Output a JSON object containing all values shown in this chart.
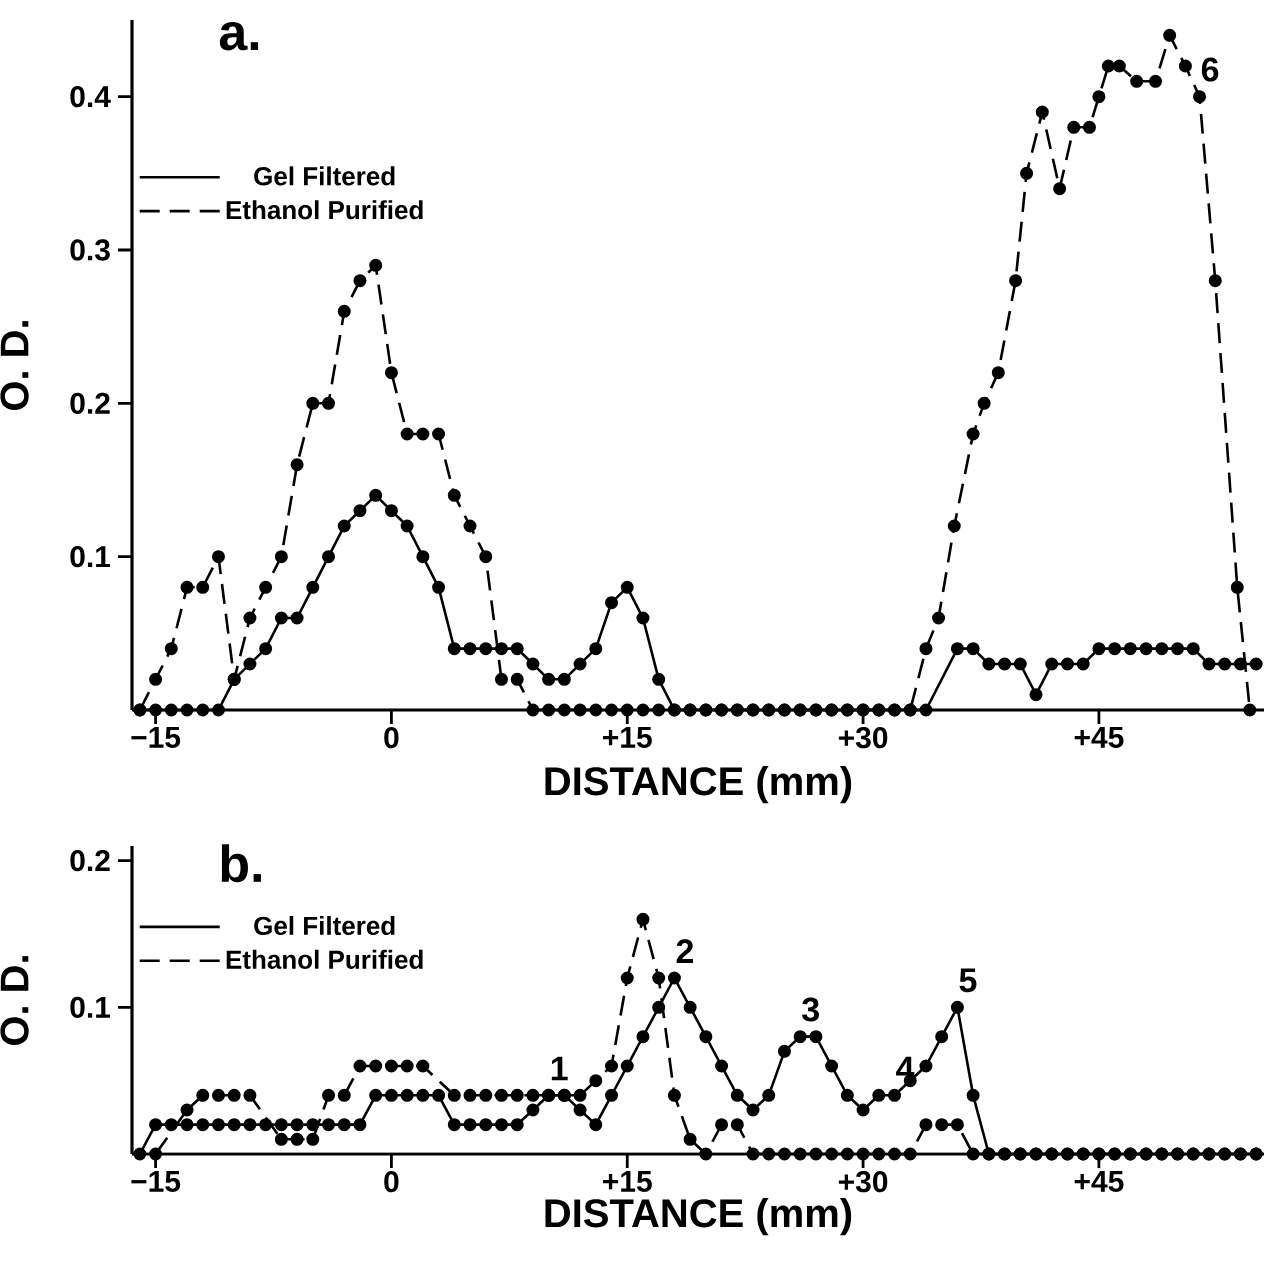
{
  "chart_data": [
    {
      "type": "line",
      "title": "a.",
      "xlabel": "DISTANCE (mm)",
      "ylabel": "O. D.",
      "xlim": [
        -16.5,
        55.5
      ],
      "ylim": [
        0,
        0.45
      ],
      "xticks": [
        {
          "value": -15,
          "label": "−15"
        },
        0,
        {
          "value": 15,
          "label": "+15"
        },
        {
          "value": 30,
          "label": "+30"
        },
        {
          "value": 45,
          "label": "+45"
        }
      ],
      "yticks": [
        0.1,
        0.2,
        0.3,
        0.4
      ],
      "legend": "top left",
      "marker": "circle",
      "series": [
        {
          "name": "Gel Filtered",
          "color": "#000000",
          "line_style": "solid",
          "x": [
            -16,
            -15,
            -14,
            -13,
            -12,
            -11,
            -10,
            -9,
            -8,
            -7,
            -6,
            -5,
            -4,
            -3,
            -2,
            -1,
            0,
            1,
            2,
            3,
            4,
            5,
            6,
            7,
            8,
            9,
            10,
            11,
            12,
            13,
            14,
            15,
            16,
            17,
            18,
            19,
            20,
            21,
            22,
            23,
            24,
            25,
            26,
            27,
            28,
            29,
            30,
            31,
            32,
            33,
            34,
            36,
            37,
            38,
            39,
            40,
            41,
            42,
            43,
            44,
            45,
            46,
            47,
            48,
            49,
            50,
            51,
            52,
            53,
            54,
            55
          ],
          "values": [
            0,
            0,
            0,
            0,
            0,
            0,
            0.02,
            0.03,
            0.04,
            0.06,
            0.06,
            0.08,
            0.1,
            0.12,
            0.13,
            0.14,
            0.13,
            0.12,
            0.1,
            0.08,
            0.04,
            0.04,
            0.04,
            0.04,
            0.04,
            0.03,
            0.02,
            0.02,
            0.03,
            0.04,
            0.07,
            0.08,
            0.06,
            0.02,
            0,
            0,
            0,
            0,
            0,
            0,
            0,
            0,
            0,
            0,
            0,
            0,
            0,
            0,
            0,
            0,
            0,
            0.04,
            0.04,
            0.03,
            0.03,
            0.03,
            0.01,
            0.03,
            0.03,
            0.03,
            0.04,
            0.04,
            0.04,
            0.04,
            0.04,
            0.04,
            0.04,
            0.03,
            0.03,
            0.03,
            0.03
          ]
        },
        {
          "name": "Ethanol Purified",
          "color": "#000000",
          "line_style": "dashed",
          "x": [
            -16,
            -15,
            -14,
            -13,
            -12,
            -11,
            -10,
            -9,
            -8,
            -7,
            -6,
            -5,
            -4,
            -3,
            -2,
            -1,
            0,
            1,
            2,
            3,
            4,
            5,
            6,
            7,
            8,
            9,
            10,
            11,
            12,
            13,
            14,
            15,
            16,
            17,
            18,
            19,
            20,
            21,
            22,
            23,
            24,
            25,
            26,
            27,
            28,
            29,
            30,
            31,
            32,
            33,
            34.0,
            34.8,
            35.8,
            37.0,
            37.7,
            38.6,
            39.7,
            40.4,
            41.4,
            42.5,
            43.4,
            44.4,
            45.0,
            45.6,
            46.3,
            47.4,
            48.6,
            49.5,
            50.5,
            51.4,
            52.4,
            53.8,
            54.6
          ],
          "values": [
            0,
            0.02,
            0.04,
            0.08,
            0.08,
            0.1,
            0.02,
            0.06,
            0.08,
            0.1,
            0.16,
            0.2,
            0.2,
            0.26,
            0.28,
            0.29,
            0.22,
            0.18,
            0.18,
            0.18,
            0.14,
            0.12,
            0.1,
            0.02,
            0.02,
            0,
            0,
            0,
            0,
            0,
            0,
            0,
            0,
            0,
            0,
            0,
            0,
            0,
            0,
            0,
            0,
            0,
            0,
            0,
            0,
            0,
            0,
            0,
            0,
            0,
            0.04,
            0.06,
            0.12,
            0.18,
            0.2,
            0.22,
            0.28,
            0.35,
            0.39,
            0.34,
            0.38,
            0.38,
            0.4,
            0.42,
            0.42,
            0.41,
            0.41,
            0.44,
            0.42,
            0.4,
            0.28,
            0.08,
            0
          ]
        }
      ],
      "annotations": [
        {
          "text": "6",
          "x": 51.4,
          "y": 0.4
        }
      ]
    },
    {
      "type": "line",
      "title": "b.",
      "xlabel": "DISTANCE (mm)",
      "ylabel": "O. D.",
      "xlim": [
        -16.5,
        55.5
      ],
      "ylim": [
        0,
        0.21
      ],
      "xticks": [
        {
          "value": -15,
          "label": "−15"
        },
        0,
        {
          "value": 15,
          "label": "+15"
        },
        {
          "value": 30,
          "label": "+30"
        },
        {
          "value": 45,
          "label": "+45"
        }
      ],
      "yticks": [
        0.1,
        0.2
      ],
      "legend": "top left",
      "marker": "circle",
      "series": [
        {
          "name": "Gel Filtered",
          "color": "#000000",
          "line_style": "solid",
          "x": [
            -16,
            -15,
            -14,
            -13,
            -12,
            -11,
            -10,
            -9,
            -8,
            -7,
            -6,
            -5,
            -4,
            -3,
            -2,
            -1,
            0,
            1,
            2,
            3,
            4,
            5,
            6,
            7,
            8,
            9,
            10,
            11,
            12,
            13,
            14,
            15,
            16,
            17,
            18,
            19,
            20,
            21,
            22,
            23,
            24,
            25,
            26,
            27,
            28,
            29,
            30,
            31,
            32,
            33,
            34,
            35,
            36,
            37,
            38,
            39,
            40,
            41,
            42,
            43,
            44,
            45,
            46,
            47,
            48,
            49,
            50,
            51,
            52,
            53,
            54,
            55
          ],
          "values": [
            0,
            0.02,
            0.02,
            0.02,
            0.02,
            0.02,
            0.02,
            0.02,
            0.02,
            0.02,
            0.02,
            0.02,
            0.02,
            0.02,
            0.02,
            0.04,
            0.04,
            0.04,
            0.04,
            0.04,
            0.02,
            0.02,
            0.02,
            0.02,
            0.02,
            0.03,
            0.04,
            0.04,
            0.03,
            0.02,
            0.04,
            0.06,
            0.08,
            0.1,
            0.12,
            0.1,
            0.08,
            0.06,
            0.04,
            0.03,
            0.04,
            0.07,
            0.08,
            0.08,
            0.06,
            0.04,
            0.03,
            0.04,
            0.04,
            0.05,
            0.06,
            0.08,
            0.1,
            0.04,
            0,
            0,
            0,
            0,
            0,
            0,
            0,
            0,
            0,
            0,
            0,
            0,
            0,
            0,
            0,
            0,
            0,
            0
          ]
        },
        {
          "name": "Ethanol Purified",
          "color": "#000000",
          "line_style": "dashed",
          "x": [
            -15,
            -13,
            -12,
            -11,
            -10,
            -9,
            -7,
            -6,
            -5,
            -4,
            -3,
            -2,
            -1,
            0,
            1,
            2,
            4,
            5,
            6,
            7,
            8,
            9,
            10,
            11,
            12,
            13,
            14,
            15,
            16,
            17,
            18,
            19,
            20,
            21,
            22,
            23,
            24,
            25,
            26,
            27,
            28,
            29,
            30,
            31,
            32,
            33,
            34,
            35,
            36,
            37,
            38,
            39,
            40,
            41,
            42,
            43,
            44,
            45,
            46,
            47,
            48,
            49,
            50,
            51,
            52,
            53,
            54,
            55
          ],
          "values": [
            0,
            0.03,
            0.04,
            0.04,
            0.04,
            0.04,
            0.01,
            0.01,
            0.01,
            0.04,
            0.04,
            0.06,
            0.06,
            0.06,
            0.06,
            0.06,
            0.04,
            0.04,
            0.04,
            0.04,
            0.04,
            0.04,
            0.04,
            0.04,
            0.04,
            0.05,
            0.06,
            0.12,
            0.16,
            0.12,
            0.04,
            0.01,
            0,
            0.02,
            0.02,
            0,
            0,
            0,
            0,
            0,
            0,
            0,
            0,
            0,
            0,
            0,
            0.02,
            0.02,
            0.02,
            0,
            0,
            0,
            0,
            0,
            0,
            0,
            0,
            0,
            0,
            0,
            0,
            0,
            0,
            0,
            0,
            0,
            0,
            0
          ]
        }
      ],
      "annotations": [
        {
          "text": "1",
          "x": 10,
          "y": 0.04
        },
        {
          "text": "2",
          "x": 18,
          "y": 0.12
        },
        {
          "text": "3",
          "x": 26,
          "y": 0.08
        },
        {
          "text": "4",
          "x": 32,
          "y": 0.04
        },
        {
          "text": "5",
          "x": 36,
          "y": 0.1
        }
      ]
    }
  ]
}
